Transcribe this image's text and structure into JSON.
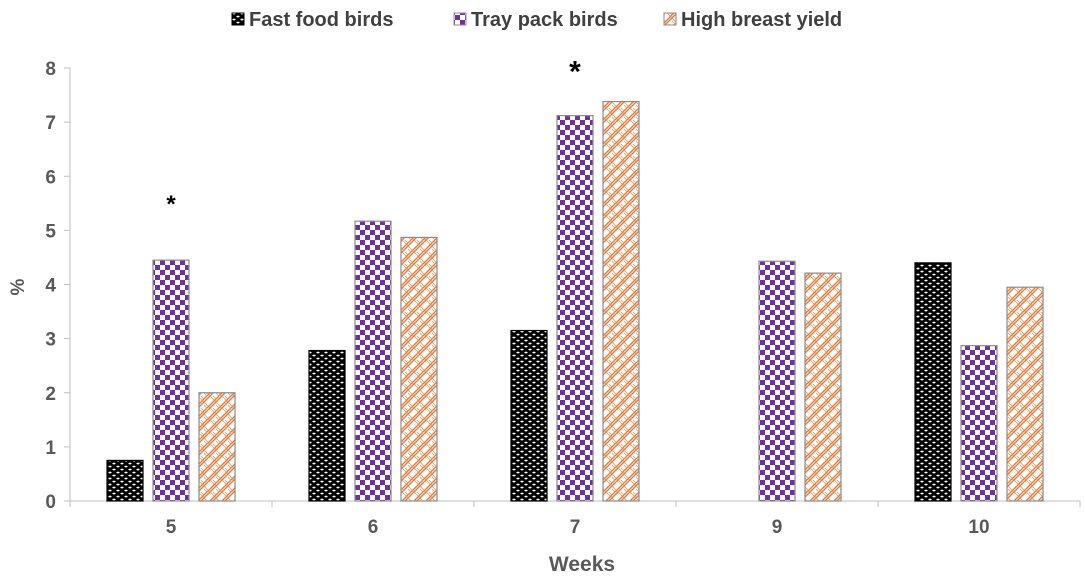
{
  "chart_data": {
    "type": "bar",
    "categories": [
      "5",
      "6",
      "7",
      "9",
      "10"
    ],
    "series": [
      {
        "name": "Fast food birds",
        "values": [
          0.75,
          2.78,
          3.15,
          null,
          4.4
        ],
        "color": "#000000",
        "pattern": "dark-dots"
      },
      {
        "name": "Tray pack birds",
        "values": [
          4.45,
          5.17,
          7.12,
          4.43,
          2.87
        ],
        "color": "#7030A0",
        "pattern": "checkerboard"
      },
      {
        "name": "High breast yield",
        "values": [
          2.0,
          4.87,
          7.38,
          4.21,
          3.95
        ],
        "color": "#E07B39",
        "pattern": "basketweave"
      }
    ],
    "xlabel": "Weeks",
    "ylabel": "%",
    "ylim": [
      0,
      8
    ],
    "yticks": [
      "0",
      "1",
      "2",
      "3",
      "4",
      "5",
      "6",
      "7",
      "8"
    ],
    "grid": false,
    "legend_position": "top-center",
    "annotations": [
      {
        "text": "*",
        "category": "5"
      },
      {
        "text": "*",
        "category": "7"
      }
    ]
  }
}
